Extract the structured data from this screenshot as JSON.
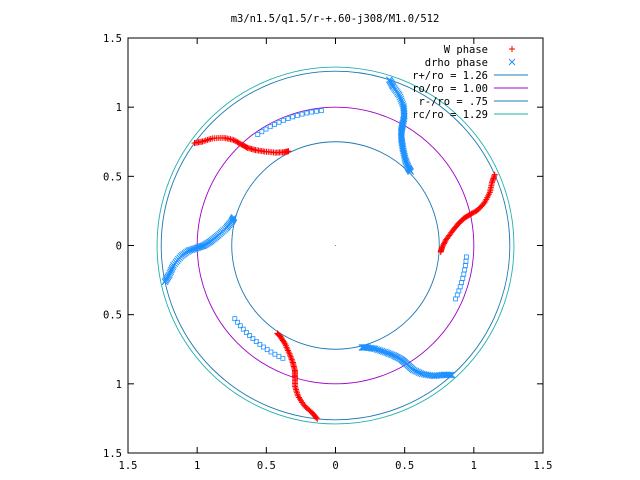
{
  "chart_data": {
    "type": "scatter",
    "title": "m3/n1.5/q1.5/r-+.60-j308/M1.0/512",
    "xlim": [
      -1.5,
      1.5
    ],
    "ylim": [
      -1.5,
      1.5
    ],
    "x_ticks": [
      -1.5,
      -1,
      -0.5,
      0,
      0.5,
      1,
      1.5
    ],
    "y_ticks": [
      -1.5,
      -1,
      -0.5,
      0,
      0.5,
      1,
      1.5
    ],
    "x_tick_labels": [
      "1.5",
      "1",
      "0.5",
      "0",
      "0.5",
      "1",
      "1.5"
    ],
    "y_tick_labels": [
      "1.5",
      "1",
      "0.5",
      "0",
      "0.5",
      "1",
      "1.5"
    ],
    "grid": false,
    "legend_position": "top-right",
    "series": [
      {
        "name": "W phase",
        "marker": "+",
        "color": "#ff0000"
      },
      {
        "name": "drho phase",
        "marker": "x",
        "color": "#1e90ff"
      }
    ],
    "circles": [
      {
        "name": "r+/ro = 1.26",
        "radius": 1.26,
        "color": "#1f78b4"
      },
      {
        "name": "ro/ro = 1.00",
        "radius": 1.0,
        "color": "#a000c8"
      },
      {
        "name": "r-/ro = .75",
        "radius": 0.75,
        "color": "#1f78b4"
      },
      {
        "name": "rc/ro = 1.29",
        "radius": 1.29,
        "color": "#20b2aa"
      }
    ]
  }
}
